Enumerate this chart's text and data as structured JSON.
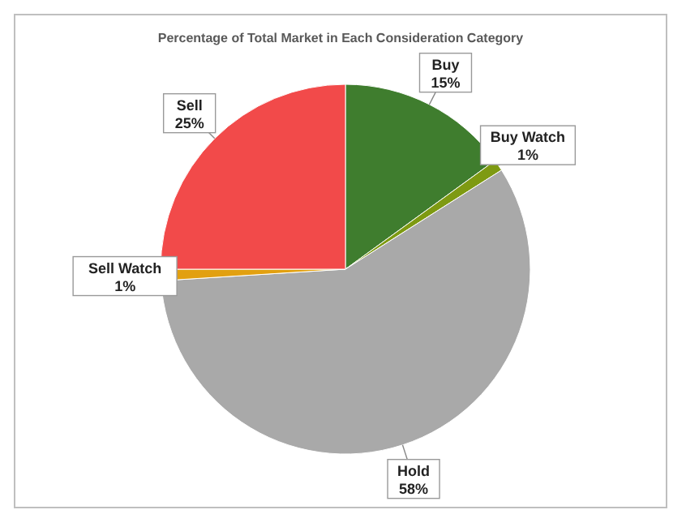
{
  "chart_data": {
    "type": "pie",
    "title": "Percentage of Total Market in Each Consideration Category",
    "categories": [
      "Buy",
      "Buy Watch",
      "Hold",
      "Sell Watch",
      "Sell"
    ],
    "values": [
      15,
      1,
      58,
      1,
      25
    ],
    "colors": [
      "#3f7d2e",
      "#7e9a12",
      "#a9a9a9",
      "#e2a010",
      "#f24a4a"
    ],
    "value_labels": [
      "15%",
      "1%",
      "58%",
      "1%",
      "25%"
    ]
  }
}
